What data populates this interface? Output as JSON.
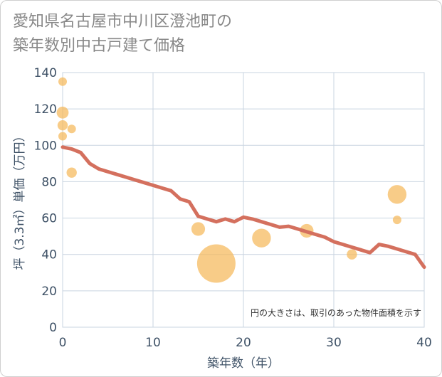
{
  "title_lines": [
    "愛知県名古屋市中川区澄池町の",
    "築年数別中古戸建て価格"
  ],
  "chart_data": {
    "type": "scatter",
    "title": "愛知県名古屋市中川区澄池町の築年数別中古戸建て価格",
    "xlabel": "築年数（年）",
    "ylabel": "坪（3.3㎡）単価（万円）",
    "xlim": [
      0,
      40
    ],
    "ylim": [
      0,
      140
    ],
    "xticks": [
      0,
      10,
      20,
      30,
      40
    ],
    "yticks": [
      0,
      20,
      40,
      60,
      80,
      100,
      120,
      140
    ],
    "grid": true,
    "annotation": "円の大きさは、取引のあった物件面積を示す",
    "scatter": [
      {
        "x": 0,
        "y": 135,
        "size": 1
      },
      {
        "x": 0,
        "y": 118,
        "size": 1.4
      },
      {
        "x": 0,
        "y": 111,
        "size": 1.2
      },
      {
        "x": 0,
        "y": 105,
        "size": 1
      },
      {
        "x": 1,
        "y": 109,
        "size": 1
      },
      {
        "x": 1,
        "y": 85,
        "size": 1.2
      },
      {
        "x": 15,
        "y": 54,
        "size": 1.6
      },
      {
        "x": 17,
        "y": 35,
        "size": 4.5
      },
      {
        "x": 22,
        "y": 49,
        "size": 2.2
      },
      {
        "x": 27,
        "y": 53,
        "size": 1.6
      },
      {
        "x": 32,
        "y": 40,
        "size": 1.2
      },
      {
        "x": 37,
        "y": 73,
        "size": 2.2
      },
      {
        "x": 37,
        "y": 59,
        "size": 1
      }
    ],
    "trend": {
      "x": [
        0,
        1,
        2,
        3,
        4,
        5,
        6,
        7,
        8,
        9,
        10,
        11,
        12,
        13,
        14,
        15,
        16,
        17,
        18,
        19,
        20,
        21,
        22,
        23,
        24,
        25,
        26,
        27,
        28,
        29,
        30,
        31,
        32,
        33,
        34,
        35,
        36,
        37,
        38,
        39,
        40
      ],
      "y": [
        99,
        98,
        96,
        90,
        87,
        85.5,
        84,
        82.5,
        81,
        79.5,
        78,
        76.5,
        75,
        70.5,
        69,
        61,
        59.5,
        58,
        59.5,
        58,
        60.5,
        59.5,
        58,
        56.5,
        55,
        55.5,
        54,
        52.5,
        51,
        49.5,
        47,
        45.5,
        44,
        42.5,
        41,
        45.5,
        44.5,
        43,
        41.5,
        40,
        33
      ]
    },
    "colors": {
      "bubble": "#f5b85a",
      "trend": "#d4705e",
      "grid": "#c9d4e0",
      "axis_text": "#3e5166"
    }
  }
}
